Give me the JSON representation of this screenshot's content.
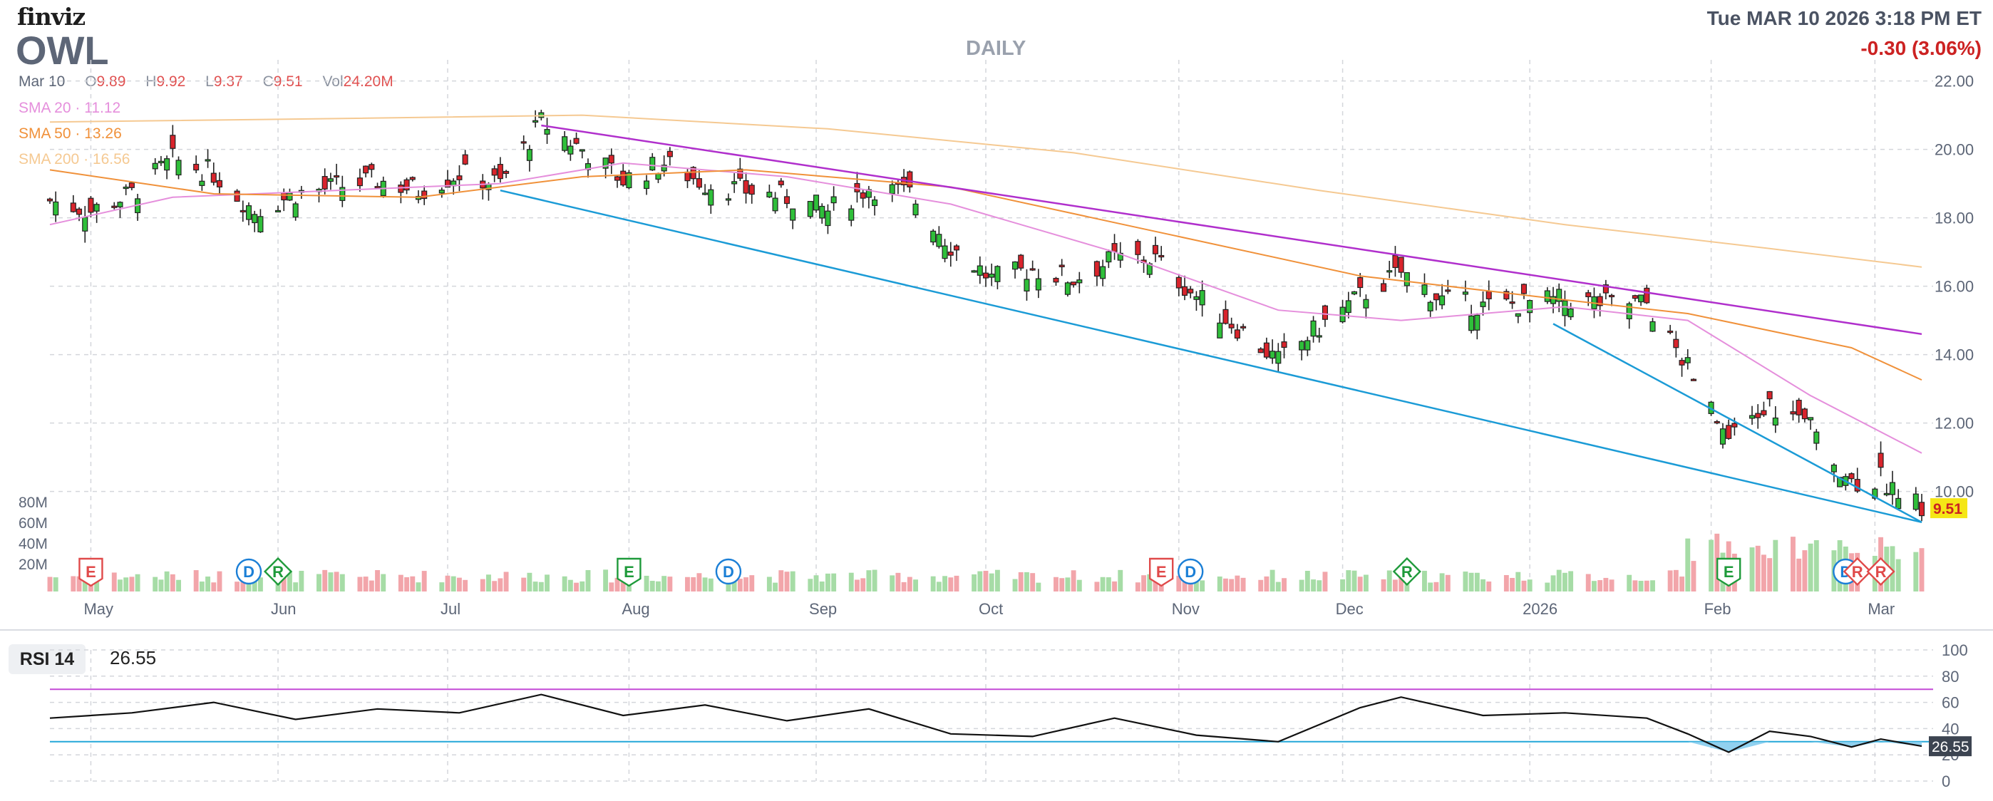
{
  "header": {
    "logo": "finviz",
    "ticker": "OWL",
    "period": "DAILY",
    "datetime": "Tue MAR 10 2026 3:18 PM ET",
    "change": "-0.30 (3.06%)",
    "date": "Mar 10",
    "open_key": "O",
    "open": "9.89",
    "high_key": "H",
    "high": "9.92",
    "low_key": "L",
    "low": "9.37",
    "close_key": "C",
    "close": "9.51",
    "vol_key": "Vol",
    "volume": "24.20M"
  },
  "indicators": [
    {
      "name": "SMA 20",
      "value": "11.12",
      "color": "#e58fdc"
    },
    {
      "name": "SMA 50",
      "value": "13.26",
      "color": "#f0913a"
    },
    {
      "name": "SMA 200",
      "value": "16.56",
      "color": "#f5c992"
    }
  ],
  "colors": {
    "up": "#2fbf3a",
    "down": "#d9242c",
    "vol_up": "#a6dca6",
    "vol_down": "#f2a5aa",
    "trendline_purple": "#b02fcc",
    "trendline_blue": "#1b9bd6",
    "rsi_line": "#111111"
  },
  "chart_data": {
    "type": "candlestick",
    "x_range": [
      "2025-04-24",
      "2026-03-10"
    ],
    "ylim": [
      8.7,
      22.2
    ],
    "yticks": [
      "22.00",
      "20.00",
      "18.00",
      "16.00",
      "14.00",
      "12.00",
      "10.00"
    ],
    "xticks": [
      "May",
      "Jun",
      "Jul",
      "Aug",
      "Sep",
      "Oct",
      "Nov",
      "Dec",
      "2026",
      "Feb",
      "Mar"
    ],
    "last_price_label": "9.51",
    "volume_labels": [
      "80M",
      "60M",
      "40M",
      "20M"
    ],
    "close_path": [
      [
        "2025-04-24",
        18.5
      ],
      [
        "2025-05-01",
        18.2
      ],
      [
        "2025-05-08",
        18.7
      ],
      [
        "2025-05-15",
        19.7
      ],
      [
        "2025-05-22",
        19.3
      ],
      [
        "2025-05-29",
        18.2
      ],
      [
        "2025-06-05",
        18.7
      ],
      [
        "2025-06-12",
        18.9
      ],
      [
        "2025-06-19",
        19.1
      ],
      [
        "2025-06-26",
        18.8
      ],
      [
        "2025-07-03",
        19.3
      ],
      [
        "2025-07-10",
        19.0
      ],
      [
        "2025-07-17",
        20.8
      ],
      [
        "2025-07-24",
        20.0
      ],
      [
        "2025-07-31",
        19.1
      ],
      [
        "2025-08-07",
        19.6
      ],
      [
        "2025-08-14",
        19.0
      ],
      [
        "2025-08-21",
        18.8
      ],
      [
        "2025-08-28",
        18.6
      ],
      [
        "2025-09-04",
        18.2
      ],
      [
        "2025-09-11",
        18.9
      ],
      [
        "2025-09-18",
        18.7
      ],
      [
        "2025-09-25",
        17.2
      ],
      [
        "2025-10-02",
        16.2
      ],
      [
        "2025-10-09",
        16.5
      ],
      [
        "2025-10-16",
        16.2
      ],
      [
        "2025-10-23",
        16.8
      ],
      [
        "2025-10-30",
        16.8
      ],
      [
        "2025-11-06",
        15.7
      ],
      [
        "2025-11-13",
        14.8
      ],
      [
        "2025-11-20",
        13.8
      ],
      [
        "2025-11-27",
        14.8
      ],
      [
        "2025-12-04",
        15.7
      ],
      [
        "2025-12-11",
        16.4
      ],
      [
        "2025-12-18",
        15.6
      ],
      [
        "2025-12-25",
        15.4
      ],
      [
        "2026-01-01",
        15.5
      ],
      [
        "2026-01-08",
        15.6
      ],
      [
        "2026-01-15",
        15.5
      ],
      [
        "2026-01-22",
        15.5
      ],
      [
        "2026-01-29",
        13.6
      ],
      [
        "2026-02-05",
        11.4
      ],
      [
        "2026-02-12",
        12.5
      ],
      [
        "2026-02-19",
        11.9
      ],
      [
        "2026-02-26",
        10.3
      ],
      [
        "2026-03-03",
        10.4
      ],
      [
        "2026-03-10",
        9.51
      ]
    ],
    "sma_lines": [
      {
        "name": "SMA 20",
        "points": [
          [
            "2025-04-24",
            17.8
          ],
          [
            "2025-05-15",
            18.6
          ],
          [
            "2025-06-12",
            18.8
          ],
          [
            "2025-07-10",
            19.0
          ],
          [
            "2025-07-31",
            19.6
          ],
          [
            "2025-08-28",
            19.2
          ],
          [
            "2025-09-25",
            18.4
          ],
          [
            "2025-10-23",
            17.0
          ],
          [
            "2025-11-20",
            15.3
          ],
          [
            "2025-12-11",
            15.0
          ],
          [
            "2026-01-08",
            15.4
          ],
          [
            "2026-01-29",
            15.0
          ],
          [
            "2026-02-19",
            12.8
          ],
          [
            "2026-03-10",
            11.12
          ]
        ]
      },
      {
        "name": "SMA 50",
        "points": [
          [
            "2025-04-24",
            19.4
          ],
          [
            "2025-05-22",
            18.7
          ],
          [
            "2025-06-26",
            18.6
          ],
          [
            "2025-07-24",
            19.2
          ],
          [
            "2025-08-21",
            19.4
          ],
          [
            "2025-09-25",
            18.9
          ],
          [
            "2025-10-30",
            17.6
          ],
          [
            "2025-12-04",
            16.3
          ],
          [
            "2026-01-08",
            15.6
          ],
          [
            "2026-01-29",
            15.2
          ],
          [
            "2026-02-26",
            14.2
          ],
          [
            "2026-03-10",
            13.26
          ]
        ]
      },
      {
        "name": "SMA 200",
        "points": [
          [
            "2025-04-24",
            20.8
          ],
          [
            "2025-06-12",
            20.9
          ],
          [
            "2025-07-24",
            21.0
          ],
          [
            "2025-09-04",
            20.6
          ],
          [
            "2025-10-16",
            19.9
          ],
          [
            "2025-11-27",
            18.8
          ],
          [
            "2026-01-08",
            17.8
          ],
          [
            "2026-02-12",
            17.1
          ],
          [
            "2026-03-10",
            16.56
          ]
        ]
      }
    ],
    "trendlines": [
      {
        "color": "purple",
        "from": [
          "2025-07-17",
          20.7
        ],
        "to": [
          "2026-03-10",
          14.6
        ]
      },
      {
        "color": "blue",
        "from": [
          "2025-07-10",
          18.8
        ],
        "to": [
          "2026-03-10",
          9.1
        ]
      },
      {
        "color": "blue",
        "from": [
          "2026-01-06",
          14.9
        ],
        "to": [
          "2026-03-10",
          9.1
        ]
      }
    ],
    "events": [
      {
        "label": "E",
        "date": "2025-05-01",
        "kind": "earnings-red"
      },
      {
        "label": "D",
        "date": "2025-05-28",
        "kind": "dividend"
      },
      {
        "label": "R",
        "date": "2025-06-02",
        "kind": "rating-green"
      },
      {
        "label": "E",
        "date": "2025-08-01",
        "kind": "earnings-green"
      },
      {
        "label": "D",
        "date": "2025-08-18",
        "kind": "dividend"
      },
      {
        "label": "E",
        "date": "2025-10-31",
        "kind": "earnings-red"
      },
      {
        "label": "D",
        "date": "2025-11-05",
        "kind": "dividend"
      },
      {
        "label": "R",
        "date": "2025-12-12",
        "kind": "rating-green"
      },
      {
        "label": "E",
        "date": "2026-02-05",
        "kind": "earnings-green"
      },
      {
        "label": "D",
        "date": "2026-02-25",
        "kind": "dividend"
      },
      {
        "label": "R",
        "date": "2026-02-27",
        "kind": "rating-red"
      },
      {
        "label": "R",
        "date": "2026-03-03",
        "kind": "rating-red"
      }
    ],
    "rsi": {
      "label": "RSI 14",
      "value": "26.55",
      "ylim": [
        0,
        100
      ],
      "yticks": [
        "100",
        "80",
        "60",
        "40",
        "20",
        "0"
      ],
      "overbought": 70,
      "oversold": 30,
      "points": [
        [
          "2025-04-24",
          48
        ],
        [
          "2025-05-08",
          52
        ],
        [
          "2025-05-22",
          60
        ],
        [
          "2025-06-05",
          47
        ],
        [
          "2025-06-19",
          55
        ],
        [
          "2025-07-03",
          52
        ],
        [
          "2025-07-17",
          66
        ],
        [
          "2025-07-31",
          50
        ],
        [
          "2025-08-14",
          58
        ],
        [
          "2025-08-28",
          46
        ],
        [
          "2025-09-11",
          55
        ],
        [
          "2025-09-25",
          36
        ],
        [
          "2025-10-09",
          34
        ],
        [
          "2025-10-23",
          48
        ],
        [
          "2025-11-06",
          35
        ],
        [
          "2025-11-20",
          30
        ],
        [
          "2025-12-04",
          56
        ],
        [
          "2025-12-11",
          64
        ],
        [
          "2025-12-25",
          50
        ],
        [
          "2026-01-08",
          52
        ],
        [
          "2026-01-22",
          48
        ],
        [
          "2026-01-29",
          36
        ],
        [
          "2026-02-05",
          22
        ],
        [
          "2026-02-12",
          38
        ],
        [
          "2026-02-19",
          34
        ],
        [
          "2026-02-26",
          26
        ],
        [
          "2026-03-03",
          32
        ],
        [
          "2026-03-10",
          26.55
        ]
      ]
    }
  }
}
